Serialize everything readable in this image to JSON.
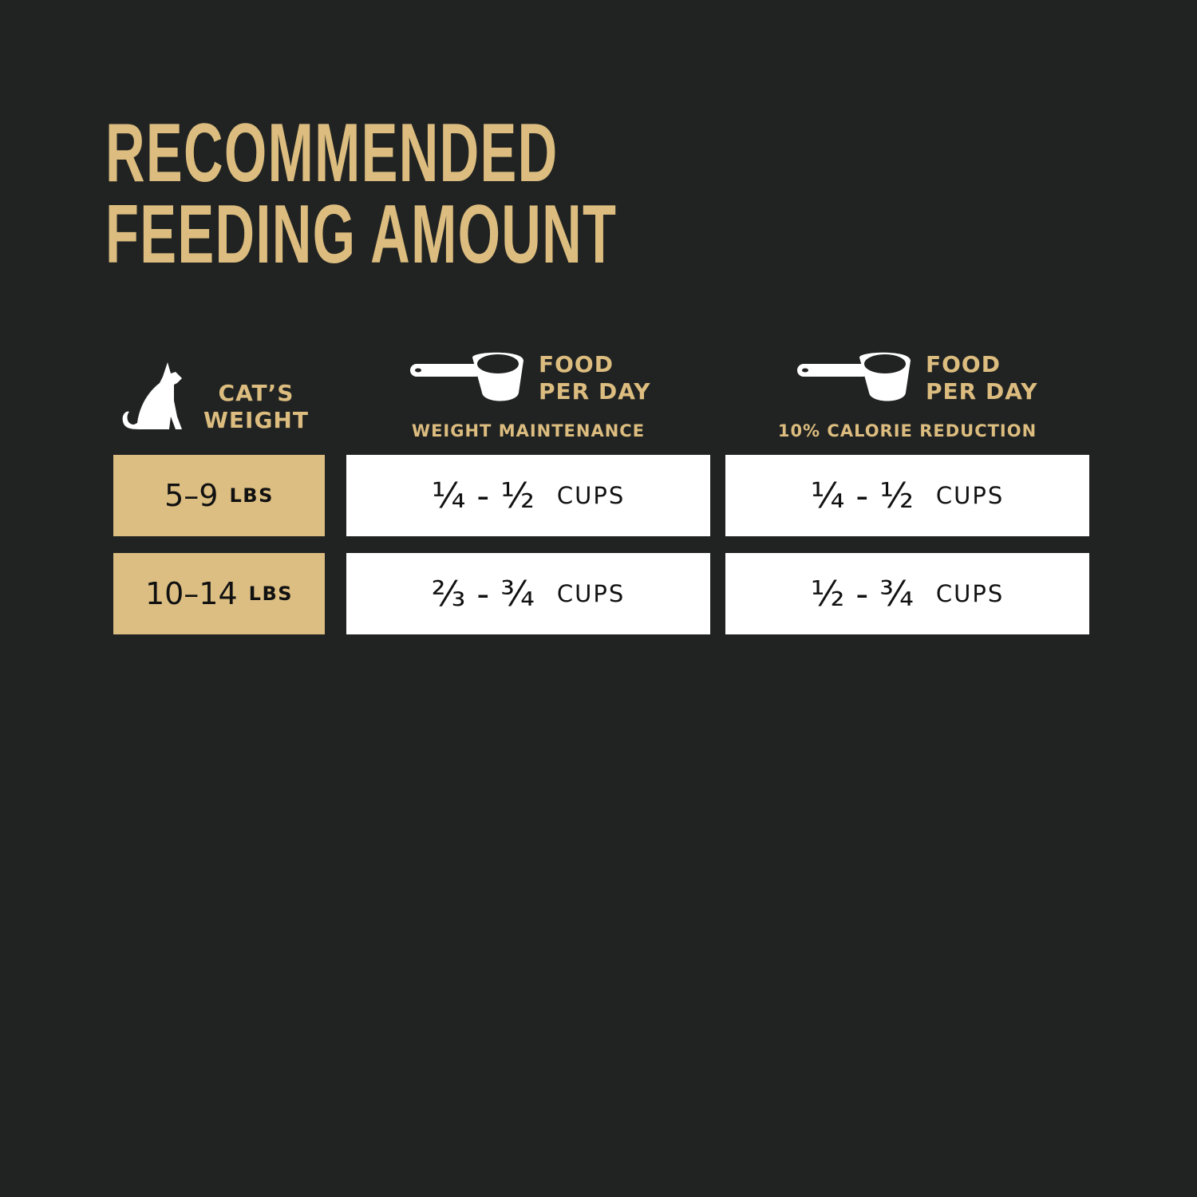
{
  "title": {
    "line1": "RECOMMENDED",
    "line2": "FEEDING AMOUNT"
  },
  "colors": {
    "background": "#212322",
    "accent": "#dcbd7f",
    "cell_white": "#ffffff"
  },
  "columns": [
    {
      "icon": "cat-icon",
      "label_line1": "CAT’S",
      "label_line2": "WEIGHT"
    },
    {
      "icon": "measuring-cup-icon",
      "label_line1": "FOOD",
      "label_line2": "PER DAY",
      "sublabel": "WEIGHT MAINTENANCE"
    },
    {
      "icon": "measuring-cup-icon",
      "label_line1": "FOOD",
      "label_line2": "PER DAY",
      "sublabel": "10% CALORIE REDUCTION"
    }
  ],
  "rows": [
    {
      "weight": "5–9",
      "weight_unit": "LBS",
      "maintenance": "¼ - ½",
      "reduction": "¼ - ½",
      "unit": "CUPS"
    },
    {
      "weight": "10–14",
      "weight_unit": "LBS",
      "maintenance": "⅔ - ¾",
      "reduction": "½ - ¾",
      "unit": "CUPS"
    }
  ]
}
